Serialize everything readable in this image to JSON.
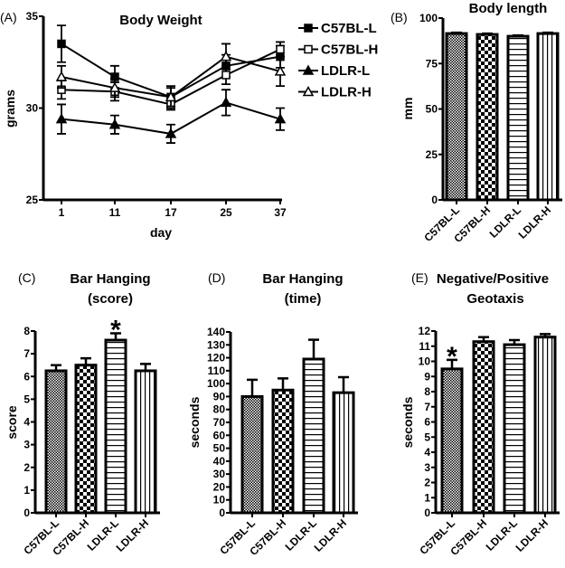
{
  "chart_data": [
    {
      "panel": "(A)",
      "type": "line",
      "title": "Body Weight",
      "xlabel": "day",
      "ylabel": "grams",
      "x": [
        "1",
        "11",
        "17",
        "25",
        "37"
      ],
      "ylim": [
        25,
        35
      ],
      "yticks": [
        25,
        30,
        35
      ],
      "legend_position": "right",
      "series": [
        {
          "name": "C57BL-L",
          "marker": "filled-square",
          "values": [
            33.5,
            31.7,
            30.6,
            32.3,
            32.8
          ],
          "errors": [
            1.0,
            0.6,
            0.6,
            0.6,
            0.6
          ]
        },
        {
          "name": "C57BL-H",
          "marker": "open-square",
          "values": [
            31.0,
            30.9,
            30.2,
            31.8,
            33.2
          ],
          "errors": [
            0.5,
            0.5,
            0.3,
            0.5,
            0.4
          ]
        },
        {
          "name": "LDLR-L",
          "marker": "filled-triangle",
          "values": [
            29.4,
            29.1,
            28.6,
            30.3,
            29.4
          ],
          "errors": [
            0.8,
            0.5,
            0.5,
            0.7,
            0.6
          ]
        },
        {
          "name": "LDLR-H",
          "marker": "open-triangle",
          "values": [
            31.7,
            31.1,
            30.6,
            32.8,
            32.0
          ],
          "errors": [
            0.6,
            0.5,
            0.5,
            0.7,
            0.8
          ]
        }
      ]
    },
    {
      "panel": "(B)",
      "type": "bar",
      "title": "Body length",
      "ylabel": "mm",
      "categories": [
        "C57BL-L",
        "C57BL-H",
        "LDLR-L",
        "LDLR-H"
      ],
      "values": [
        91.5,
        91.0,
        90.0,
        91.5
      ],
      "errors": [
        0.5,
        0.5,
        0.5,
        0.5
      ],
      "ylim": [
        0,
        100
      ],
      "yticks": [
        0,
        25,
        50,
        75,
        100
      ],
      "annotations": []
    },
    {
      "panel": "(C)",
      "type": "bar",
      "title": "Bar Hanging",
      "subtitle": "(score)",
      "ylabel": "score",
      "categories": [
        "C57BL-L",
        "C57BL-H",
        "LDLR-L",
        "LDLR-H"
      ],
      "values": [
        6.25,
        6.5,
        7.6,
        6.25
      ],
      "errors": [
        0.25,
        0.3,
        0.3,
        0.3
      ],
      "ylim": [
        0,
        8
      ],
      "yticks": [
        0,
        1,
        2,
        3,
        4,
        5,
        6,
        7,
        8
      ],
      "annotations": [
        {
          "category": "LDLR-L",
          "text": "*"
        }
      ]
    },
    {
      "panel": "(D)",
      "type": "bar",
      "title": "Bar Hanging",
      "subtitle": "(time)",
      "ylabel": "seconds",
      "categories": [
        "C57BL-L",
        "C57BL-H",
        "LDLR-L",
        "LDLR-H"
      ],
      "values": [
        90,
        95,
        119,
        93
      ],
      "errors": [
        13,
        9,
        15,
        12
      ],
      "ylim": [
        0,
        140
      ],
      "yticks": [
        0,
        10,
        20,
        30,
        40,
        50,
        60,
        70,
        80,
        90,
        100,
        110,
        120,
        130,
        140
      ],
      "annotations": []
    },
    {
      "panel": "(E)",
      "type": "bar",
      "title": "Negative/Positive",
      "subtitle": "Geotaxis",
      "ylabel": "seconds",
      "categories": [
        "C57BL-L",
        "C57BL-H",
        "LDLR-L",
        "LDLR-H"
      ],
      "values": [
        9.5,
        11.3,
        11.1,
        11.6
      ],
      "errors": [
        0.6,
        0.3,
        0.3,
        0.2
      ],
      "ylim": [
        0,
        12
      ],
      "yticks": [
        0,
        1,
        2,
        3,
        4,
        5,
        6,
        7,
        8,
        9,
        10,
        11,
        12
      ],
      "annotations": [
        {
          "category": "C57BL-L",
          "text": "*"
        }
      ]
    }
  ]
}
